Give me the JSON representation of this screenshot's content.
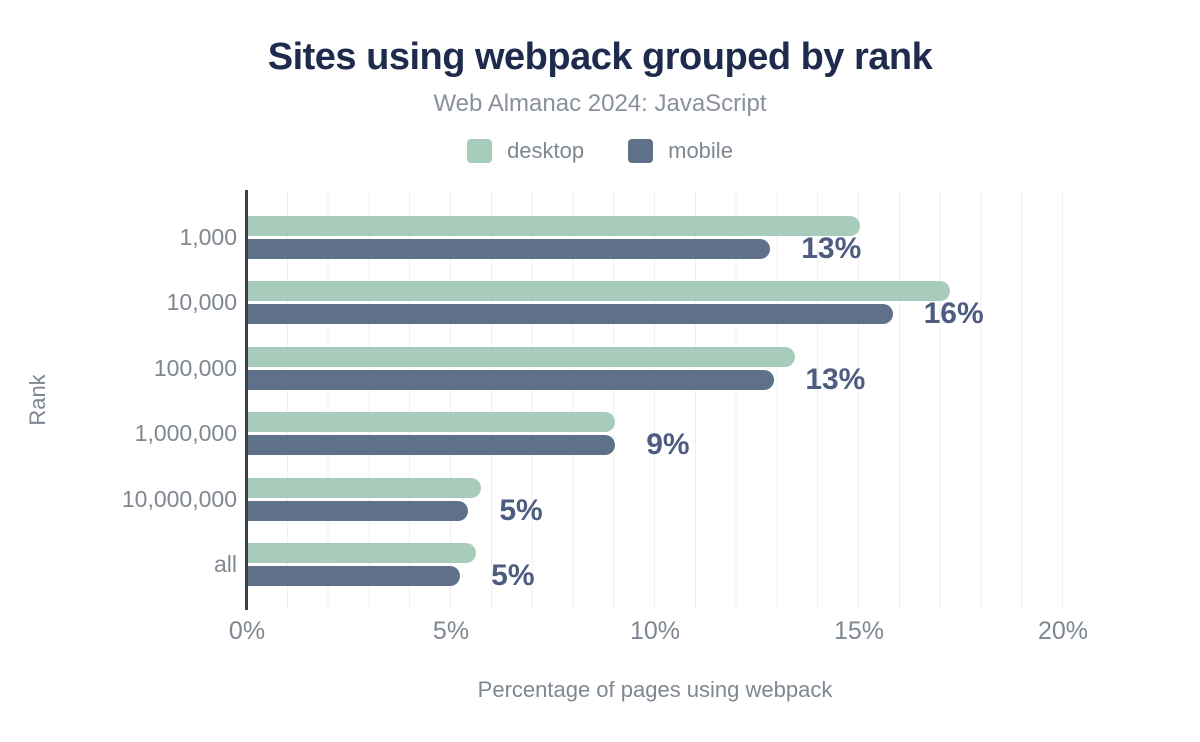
{
  "title": "Sites using webpack grouped by rank",
  "subtitle": "Web Almanac 2024: JavaScript",
  "legend": [
    {
      "label": "desktop",
      "color": "#a8ccbb"
    },
    {
      "label": "mobile",
      "color": "#5f7189"
    }
  ],
  "colors": {
    "title": "#1e2b4c",
    "subtitle": "#8a919b",
    "axis_text": "#7f8791",
    "data_label": "#4d5c80",
    "axis_line": "#363e4f",
    "gridline": "#efeff1",
    "desktop_bar": "#a8ccbb",
    "mobile_bar": "#5f7189"
  },
  "chart_data": {
    "type": "bar",
    "orientation": "horizontal",
    "title": "Sites using webpack grouped by rank",
    "subtitle": "Web Almanac 2024: JavaScript",
    "categories": [
      "1,000",
      "10,000",
      "100,000",
      "1,000,000",
      "10,000,000",
      "all"
    ],
    "series": [
      {
        "name": "desktop",
        "color": "#a8ccbb",
        "values": [
          15.0,
          17.2,
          13.4,
          9.0,
          5.7,
          5.6
        ]
      },
      {
        "name": "mobile",
        "color": "#5f7189",
        "values": [
          12.8,
          15.8,
          12.9,
          9.0,
          5.4,
          5.2
        ]
      }
    ],
    "data_labels": [
      "13%",
      "16%",
      "13%",
      "9%",
      "5%",
      "5%"
    ],
    "data_labels_follow_series": "mobile",
    "xlabel": "Percentage of pages using webpack",
    "ylabel": "Rank",
    "x_ticks": [
      {
        "label": "0%",
        "value": 0
      },
      {
        "label": "5%",
        "value": 5
      },
      {
        "label": "10%",
        "value": 10
      },
      {
        "label": "15%",
        "value": 15
      },
      {
        "label": "20%",
        "value": 20
      }
    ],
    "xlim": [
      0,
      20
    ],
    "grid": "vertical, minor line every 1%",
    "legend_position": "top center"
  }
}
